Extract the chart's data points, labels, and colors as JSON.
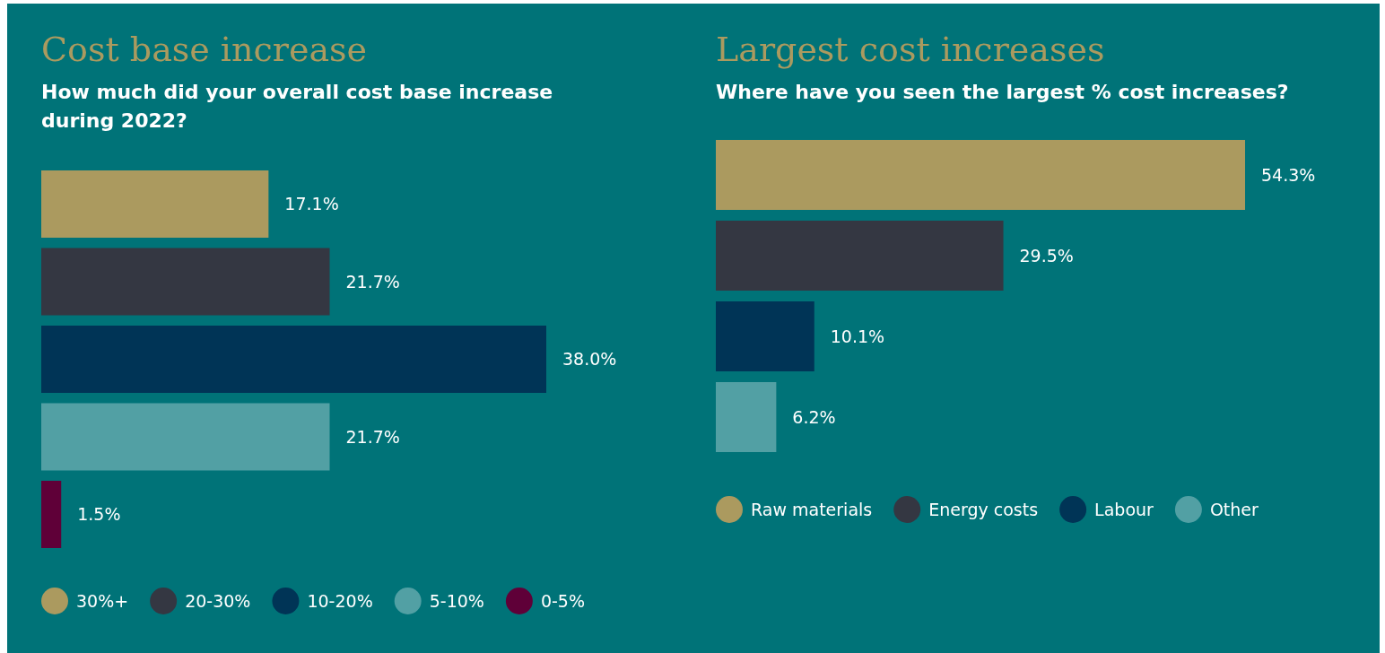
{
  "chart_data": [
    {
      "type": "bar",
      "title": "Cost base increase",
      "subtitle": "How much did your overall cost base increase during 2022?",
      "orientation": "horizontal",
      "stacked": true,
      "legend": "bottom",
      "categories": [
        null,
        null,
        null,
        null,
        null
      ],
      "series": [
        {
          "name": "30%+",
          "color": "#ab9a5f",
          "values": [
            17.1,
            null,
            null,
            null,
            null
          ],
          "value_labels": [
            "17.1%",
            null,
            null,
            null,
            null
          ]
        },
        {
          "name": "20-30%",
          "color": "#343742",
          "values": [
            null,
            21.7,
            null,
            null,
            null
          ],
          "value_labels": [
            null,
            "21.7%",
            null,
            null,
            null
          ]
        },
        {
          "name": "10-20%",
          "color": "#003456",
          "values": [
            null,
            null,
            38.0,
            null,
            null
          ],
          "value_labels": [
            null,
            null,
            "38.0%",
            null,
            null
          ]
        },
        {
          "name": "5-10%",
          "color": "#52a0a4",
          "values": [
            null,
            null,
            null,
            21.7,
            null
          ],
          "value_labels": [
            null,
            null,
            null,
            "21.7%",
            null
          ]
        },
        {
          "name": "0-5%",
          "color": "#5f0038",
          "values": [
            null,
            null,
            null,
            null,
            1.5
          ],
          "value_labels": [
            null,
            null,
            null,
            null,
            "1.5%"
          ]
        }
      ]
    },
    {
      "type": "bar",
      "title": "Largest cost increases",
      "subtitle": "Where have you seen the largest % cost increases?",
      "orientation": "horizontal",
      "stacked": true,
      "legend": "bottom",
      "categories": [
        null,
        null,
        null,
        null
      ],
      "series": [
        {
          "name": "Raw materials",
          "color": "#ab9a5f",
          "values": [
            54.3,
            null,
            null,
            null
          ],
          "value_labels": [
            "54.3%",
            null,
            null,
            null
          ]
        },
        {
          "name": "Energy costs",
          "color": "#343742",
          "values": [
            null,
            29.5,
            null,
            null
          ],
          "value_labels": [
            null,
            "29.5%",
            null,
            null
          ]
        },
        {
          "name": "Labour",
          "color": "#003456",
          "values": [
            null,
            null,
            10.1,
            null
          ],
          "value_labels": [
            null,
            null,
            "10.1%",
            null
          ]
        },
        {
          "name": "Other",
          "color": "#52a0a4",
          "values": [
            null,
            null,
            null,
            6.2
          ],
          "value_labels": [
            null,
            null,
            null,
            "6.2%"
          ]
        }
      ]
    }
  ]
}
